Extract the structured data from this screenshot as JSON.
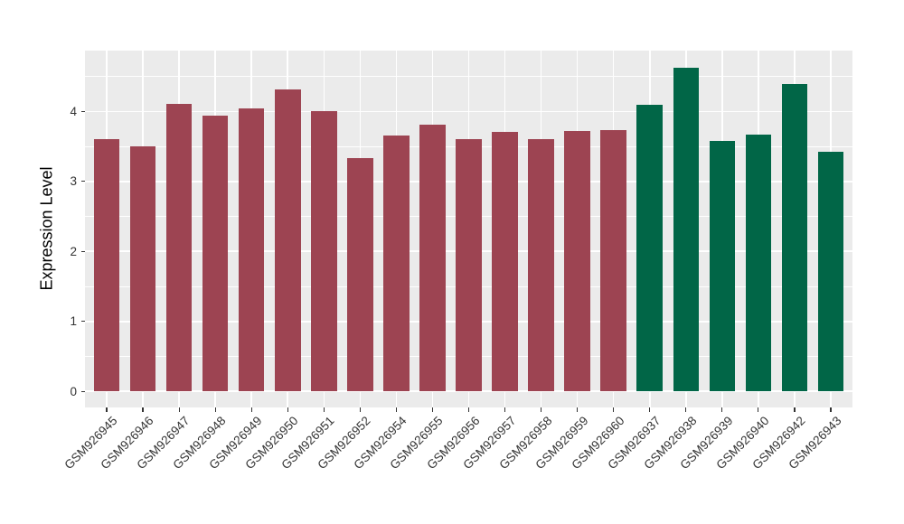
{
  "chart_data": {
    "type": "bar",
    "title": "",
    "xlabel": "",
    "ylabel": "Expression Level",
    "legend": "none",
    "grid": "on",
    "panel_background": "#EBEBEB",
    "grid_color": "#FFFFFF",
    "axis_text_color": "#333333",
    "tick_color": "#333333",
    "ylim": [
      -0.23,
      4.87
    ],
    "yticks": [
      0,
      1,
      2,
      3,
      4
    ],
    "yminor": [
      0.5,
      1.5,
      2.5,
      3.5,
      4.5
    ],
    "categories": [
      "GSM926945",
      "GSM926946",
      "GSM926947",
      "GSM926948",
      "GSM926949",
      "GSM926950",
      "GSM926951",
      "GSM926952",
      "GSM926954",
      "GSM926955",
      "GSM926956",
      "GSM926957",
      "GSM926958",
      "GSM926959",
      "GSM926960",
      "GSM926937",
      "GSM926938",
      "GSM926939",
      "GSM926940",
      "GSM926942",
      "GSM926943"
    ],
    "values": [
      3.61,
      3.5,
      4.11,
      3.94,
      4.04,
      4.32,
      4.01,
      3.34,
      3.65,
      3.81,
      3.6,
      3.71,
      3.61,
      3.72,
      3.74,
      4.09,
      4.63,
      3.58,
      3.67,
      4.39,
      3.42
    ],
    "palette": {
      "maroon": "#9D4452",
      "green": "#016647"
    },
    "bar_groups": [
      "maroon",
      "maroon",
      "maroon",
      "maroon",
      "maroon",
      "maroon",
      "maroon",
      "maroon",
      "maroon",
      "maroon",
      "maroon",
      "maroon",
      "maroon",
      "maroon",
      "maroon",
      "green",
      "green",
      "green",
      "green",
      "green",
      "green"
    ]
  }
}
